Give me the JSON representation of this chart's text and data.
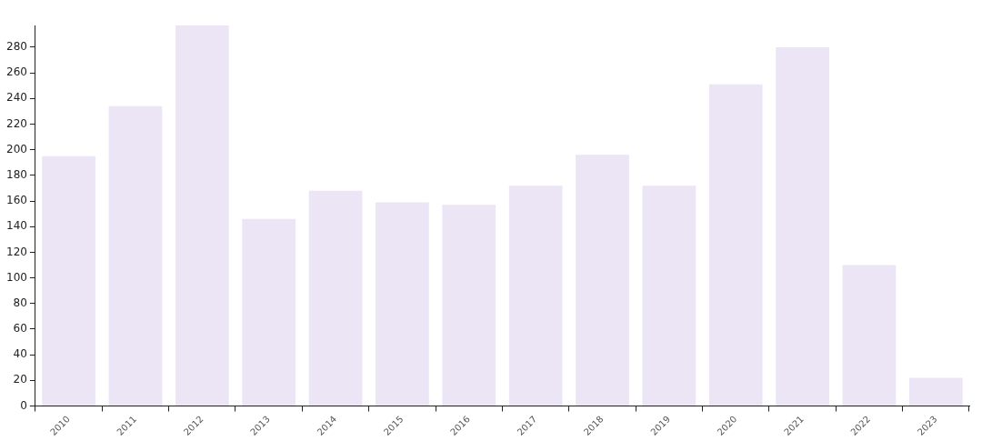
{
  "chart_data": {
    "type": "bar",
    "categories": [
      "2010",
      "2011",
      "2012",
      "2013",
      "2014",
      "2015",
      "2016",
      "2017",
      "2018",
      "2019",
      "2020",
      "2021",
      "2022",
      "2023"
    ],
    "values": [
      195,
      234,
      297,
      146,
      168,
      159,
      157,
      172,
      196,
      172,
      251,
      280,
      110,
      22
    ],
    "color": "#ebe5f5",
    "ylim": [
      0,
      297
    ],
    "yticks": [
      0,
      20,
      40,
      60,
      80,
      100,
      120,
      140,
      160,
      180,
      200,
      220,
      240,
      260,
      280
    ],
    "grid": false,
    "legend": false
  }
}
